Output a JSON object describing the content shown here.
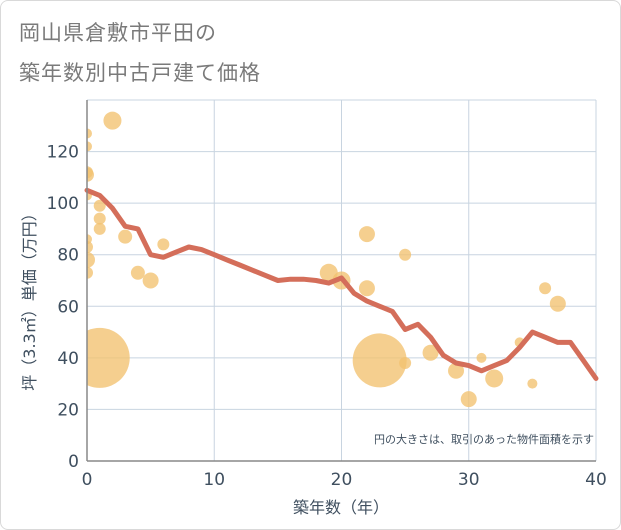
{
  "title_line1": "岡山県倉敷市平田の",
  "title_line2": "築年数別中古戸建て価格",
  "chart_data": {
    "type": "scatter+line",
    "xlabel": "築年数（年）",
    "ylabel": "坪（3.3㎡）単価（万円）",
    "xlim": [
      0,
      40
    ],
    "ylim": [
      0,
      140
    ],
    "xticks": [
      0,
      10,
      20,
      30,
      40
    ],
    "yticks": [
      0,
      20,
      40,
      60,
      80,
      100,
      120
    ],
    "grid": true,
    "note": "円の大きさは、取引のあった物件面積を示す",
    "colors": {
      "bubble": "#f2c270",
      "line": "#d46e5a",
      "grid": "#c8d4e0",
      "axis": "#888888"
    },
    "bubbles": [
      {
        "x": 0,
        "y": 127,
        "size": 5
      },
      {
        "x": 0,
        "y": 122,
        "size": 5
      },
      {
        "x": 0,
        "y": 112,
        "size": 6
      },
      {
        "x": 0,
        "y": 111,
        "size": 7
      },
      {
        "x": 0,
        "y": 103,
        "size": 5
      },
      {
        "x": 0,
        "y": 86,
        "size": 5
      },
      {
        "x": 0,
        "y": 83,
        "size": 6
      },
      {
        "x": 0,
        "y": 78,
        "size": 8
      },
      {
        "x": 0,
        "y": 73,
        "size": 6
      },
      {
        "x": 1,
        "y": 99,
        "size": 6
      },
      {
        "x": 1,
        "y": 94,
        "size": 6
      },
      {
        "x": 1,
        "y": 90,
        "size": 6
      },
      {
        "x": 1,
        "y": 40,
        "size": 30
      },
      {
        "x": 2,
        "y": 132,
        "size": 9
      },
      {
        "x": 3,
        "y": 87,
        "size": 7
      },
      {
        "x": 4,
        "y": 73,
        "size": 7
      },
      {
        "x": 5,
        "y": 70,
        "size": 8
      },
      {
        "x": 6,
        "y": 84,
        "size": 6
      },
      {
        "x": 19,
        "y": 73,
        "size": 9
      },
      {
        "x": 20,
        "y": 70,
        "size": 9
      },
      {
        "x": 22,
        "y": 88,
        "size": 8
      },
      {
        "x": 22,
        "y": 67,
        "size": 8
      },
      {
        "x": 23,
        "y": 39,
        "size": 27
      },
      {
        "x": 25,
        "y": 80,
        "size": 6
      },
      {
        "x": 25,
        "y": 38,
        "size": 6
      },
      {
        "x": 27,
        "y": 42,
        "size": 8
      },
      {
        "x": 29,
        "y": 35,
        "size": 8
      },
      {
        "x": 30,
        "y": 24,
        "size": 8
      },
      {
        "x": 31,
        "y": 40,
        "size": 5
      },
      {
        "x": 32,
        "y": 32,
        "size": 9
      },
      {
        "x": 34,
        "y": 46,
        "size": 5
      },
      {
        "x": 35,
        "y": 30,
        "size": 5
      },
      {
        "x": 36,
        "y": 67,
        "size": 6
      },
      {
        "x": 37,
        "y": 61,
        "size": 8
      }
    ],
    "line": {
      "x": [
        0,
        1,
        2,
        3,
        4,
        5,
        6,
        7,
        8,
        9,
        10,
        11,
        12,
        13,
        14,
        15,
        16,
        17,
        18,
        19,
        20,
        21,
        22,
        23,
        24,
        25,
        26,
        27,
        28,
        29,
        30,
        31,
        32,
        33,
        34,
        35,
        36,
        37,
        38,
        39,
        40
      ],
      "y": [
        105,
        103,
        98,
        91,
        90,
        80,
        79,
        81,
        83,
        82,
        80,
        78,
        76,
        74,
        72,
        70,
        70.5,
        70.5,
        70,
        69,
        71,
        65,
        62,
        60,
        58,
        51,
        53,
        48,
        41,
        38,
        37,
        35,
        37,
        39,
        44,
        50,
        48,
        46,
        46,
        39,
        32
      ]
    }
  }
}
